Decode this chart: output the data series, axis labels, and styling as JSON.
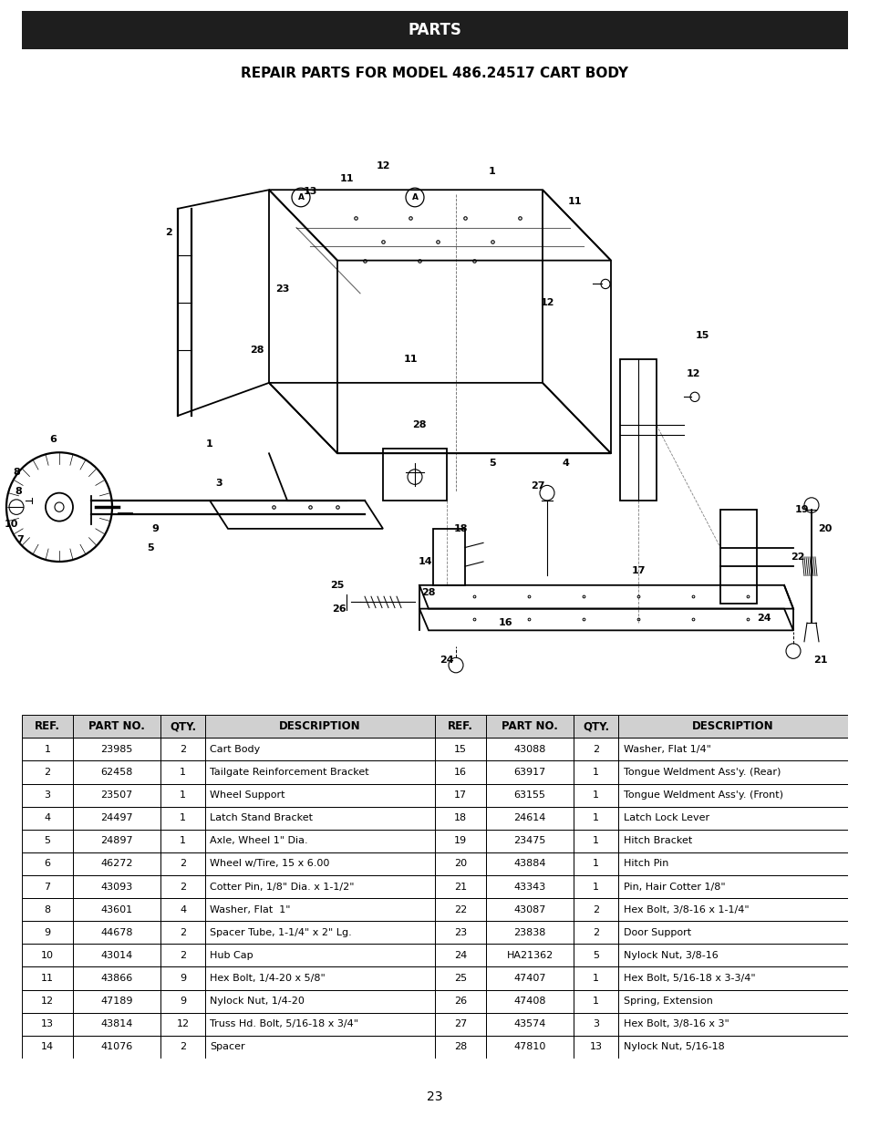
{
  "title_bar_text": "PARTS",
  "subtitle_text": "REPAIR PARTS FOR MODEL 486.24517 CART BODY",
  "page_number": "23",
  "bg_color": "#ffffff",
  "title_bar_color": "#1e1e1e",
  "title_text_color": "#ffffff",
  "subtitle_color": "#000000",
  "table_rows_left": [
    [
      "1",
      "23985",
      "2",
      "Cart Body"
    ],
    [
      "2",
      "62458",
      "1",
      "Tailgate Reinforcement Bracket"
    ],
    [
      "3",
      "23507",
      "1",
      "Wheel Support"
    ],
    [
      "4",
      "24497",
      "1",
      "Latch Stand Bracket"
    ],
    [
      "5",
      "24897",
      "1",
      "Axle, Wheel 1\" Dia."
    ],
    [
      "6",
      "46272",
      "2",
      "Wheel w/Tire, 15 x 6.00"
    ],
    [
      "7",
      "43093",
      "2",
      "Cotter Pin, 1/8\" Dia. x 1-1/2\""
    ],
    [
      "8",
      "43601",
      "4",
      "Washer, Flat  1\""
    ],
    [
      "9",
      "44678",
      "2",
      "Spacer Tube, 1-1/4\" x 2\" Lg."
    ],
    [
      "10",
      "43014",
      "2",
      "Hub Cap"
    ],
    [
      "11",
      "43866",
      "9",
      "Hex Bolt, 1/4-20 x 5/8\""
    ],
    [
      "12",
      "47189",
      "9",
      "Nylock Nut, 1/4-20"
    ],
    [
      "13",
      "43814",
      "12",
      "Truss Hd. Bolt, 5/16-18 x 3/4\""
    ],
    [
      "14",
      "41076",
      "2",
      "Spacer"
    ]
  ],
  "table_rows_right": [
    [
      "15",
      "43088",
      "2",
      "Washer, Flat 1/4\""
    ],
    [
      "16",
      "63917",
      "1",
      "Tongue Weldment Ass'y. (Rear)"
    ],
    [
      "17",
      "63155",
      "1",
      "Tongue Weldment Ass'y. (Front)"
    ],
    [
      "18",
      "24614",
      "1",
      "Latch Lock Lever"
    ],
    [
      "19",
      "23475",
      "1",
      "Hitch Bracket"
    ],
    [
      "20",
      "43884",
      "1",
      "Hitch Pin"
    ],
    [
      "21",
      "43343",
      "1",
      "Pin, Hair Cotter 1/8\""
    ],
    [
      "22",
      "43087",
      "2",
      "Hex Bolt, 3/8-16 x 1-1/4\""
    ],
    [
      "23",
      "23838",
      "2",
      "Door Support"
    ],
    [
      "24",
      "HA21362",
      "5",
      "Nylock Nut, 3/8-16"
    ],
    [
      "25",
      "47407",
      "1",
      "Hex Bolt, 5/16-18 x 3-3/4\""
    ],
    [
      "26",
      "47408",
      "1",
      "Spring, Extension"
    ],
    [
      "27",
      "43574",
      "3",
      "Hex Bolt, 3/8-16 x 3\""
    ],
    [
      "28",
      "47810",
      "13",
      "Nylock Nut, 5/16-18"
    ]
  ]
}
